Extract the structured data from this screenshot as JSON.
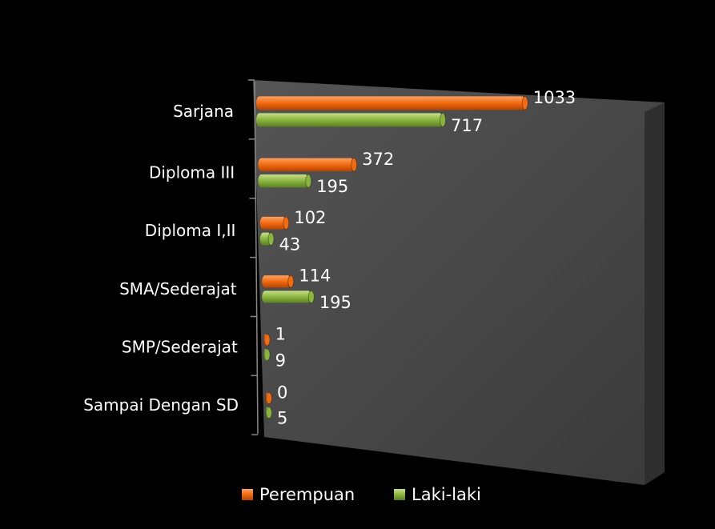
{
  "chart_data": {
    "type": "bar",
    "orientation": "horizontal",
    "categories": [
      "Sarjana",
      "Diploma III",
      "Diploma I,II",
      "SMA/Sederajat",
      "SMP/Sederajat",
      "Sampai Dengan SD"
    ],
    "series": [
      {
        "name": "Perempuan",
        "color": "#f26b0f",
        "values": [
          1033,
          372,
          102,
          114,
          1,
          0
        ]
      },
      {
        "name": "Laki-laki",
        "color": "#8ab53d",
        "values": [
          717,
          195,
          43,
          195,
          9,
          5
        ]
      }
    ],
    "legend": "bottom"
  }
}
